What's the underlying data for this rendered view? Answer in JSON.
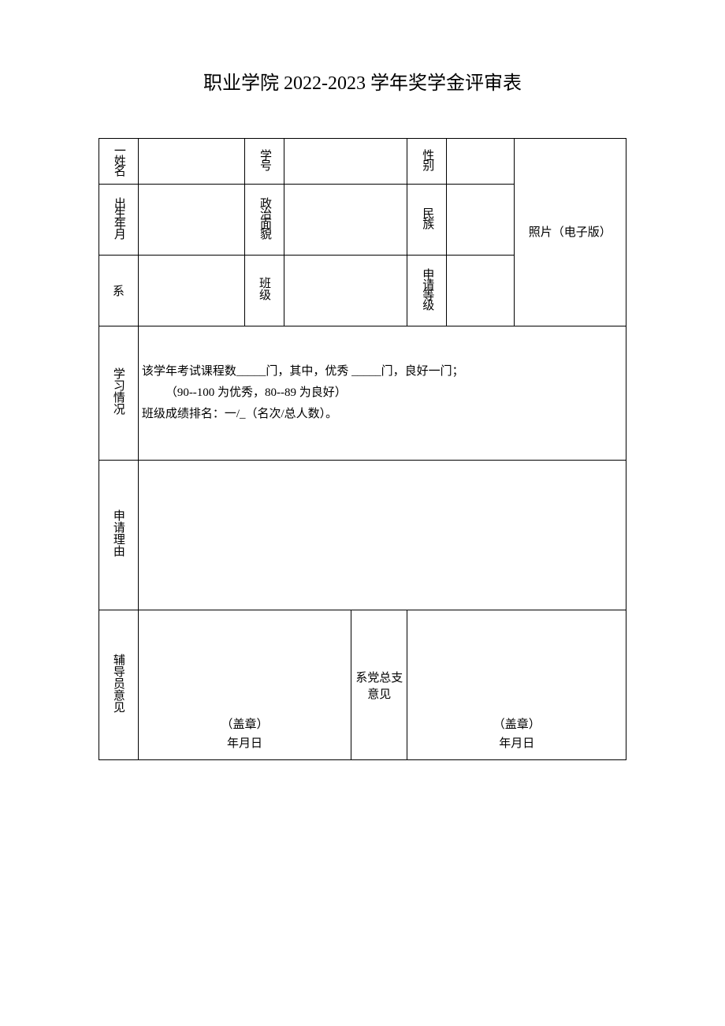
{
  "title": "职业学院 2022-2023 学年奖学金评审表",
  "labels": {
    "name": "一姓名",
    "student_id": "学号",
    "gender": "性别",
    "birth": "出生年月",
    "political": "政治面貌",
    "ethnicity": "民族",
    "photo": "照片（电子版）",
    "department": "系",
    "class": "班级",
    "grade": "申请等级",
    "study": "学习情况",
    "reason": "申请理由",
    "tutor_opinion": "辅导员意见",
    "party_opinion": "系党总支意见"
  },
  "study": {
    "line1": "该学年考试课程数_____门，其中，优秀 _____门，良好一门；",
    "line2": "（90--100 为优秀，80--89 为良好）",
    "line3": "班级成绩排名：一/_（名次/总人数）。"
  },
  "seal": "（盖章）",
  "date": "年月日",
  "values": {
    "name": "",
    "student_id": "",
    "gender": "",
    "birth": "",
    "political": "",
    "ethnicity": "",
    "department": "",
    "class": "",
    "grade": "",
    "reason": ""
  },
  "colors": {
    "background": "#ffffff",
    "border": "#000000",
    "text": "#000000"
  },
  "typography": {
    "title_fontsize": 24,
    "body_fontsize": 15,
    "font_family": "SimSun"
  }
}
